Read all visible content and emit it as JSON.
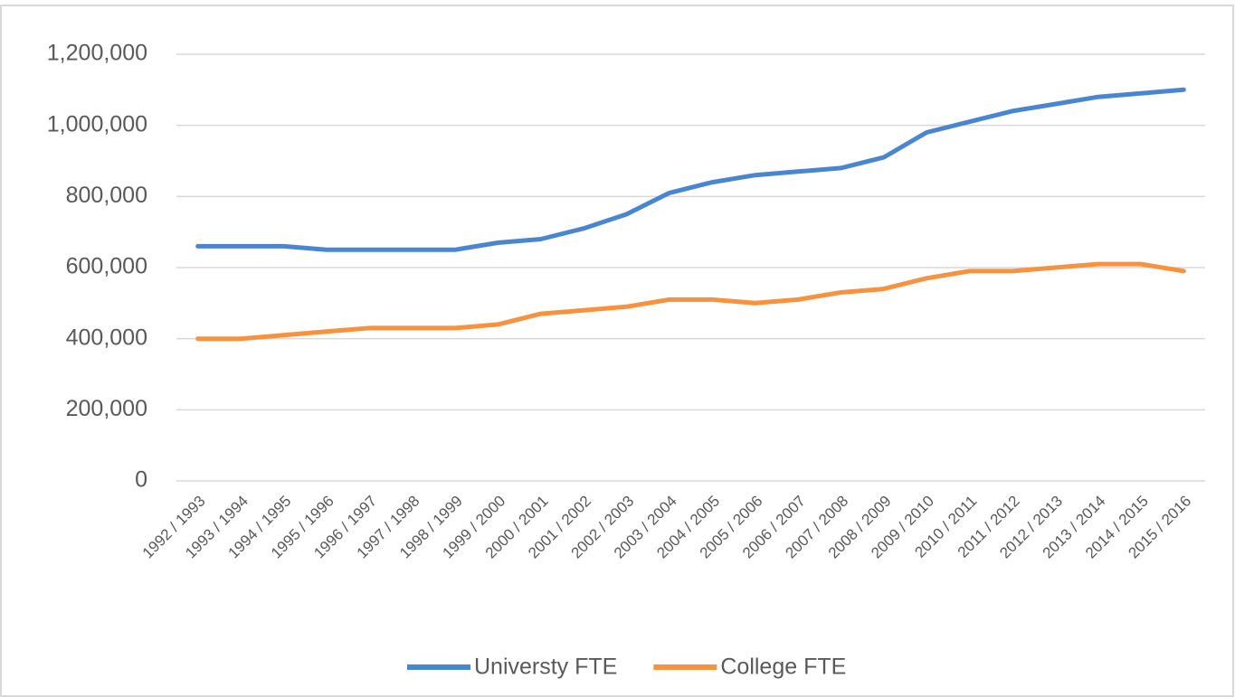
{
  "chart_data": {
    "type": "line",
    "categories": [
      "1992 / 1993",
      "1993 / 1994",
      "1994 / 1995",
      "1995 / 1996",
      "1996 / 1997",
      "1997 / 1998",
      "1998 / 1999",
      "1999 / 2000",
      "2000 / 2001",
      "2001 / 2002",
      "2002 / 2003",
      "2003 / 2004",
      "2004 / 2005",
      "2005 / 2006",
      "2006 / 2007",
      "2007 / 2008",
      "2008 / 2009",
      "2009 / 2010",
      "2010 / 2011",
      "2011 / 2012",
      "2012 / 2013",
      "2013 / 2014",
      "2014 / 2015",
      "2015 / 2016"
    ],
    "series": [
      {
        "name": "Universty FTE",
        "color": "#4a86cf",
        "values": [
          660000,
          660000,
          660000,
          650000,
          650000,
          650000,
          650000,
          670000,
          680000,
          710000,
          750000,
          810000,
          840000,
          860000,
          870000,
          880000,
          910000,
          980000,
          1010000,
          1040000,
          1060000,
          1080000,
          1090000,
          1100000
        ]
      },
      {
        "name": "College FTE",
        "color": "#f79240",
        "values": [
          400000,
          400000,
          410000,
          420000,
          430000,
          430000,
          430000,
          440000,
          470000,
          480000,
          490000,
          510000,
          510000,
          500000,
          510000,
          530000,
          540000,
          570000,
          590000,
          590000,
          600000,
          610000,
          610000,
          590000
        ]
      }
    ],
    "ylim": [
      0,
      1200000
    ],
    "yticks": [
      0,
      {
        "value": 200000,
        "label": "200,000"
      },
      {
        "value": 400000,
        "label": "400,000"
      },
      {
        "value": 600000,
        "label": "600,000"
      },
      {
        "value": 800000,
        "label": "800,000"
      },
      {
        "value": 1000000,
        "label": "1,000,000"
      },
      {
        "value": 1200000,
        "label": "1,200,000"
      }
    ],
    "grid": true,
    "legend": "bottom"
  }
}
